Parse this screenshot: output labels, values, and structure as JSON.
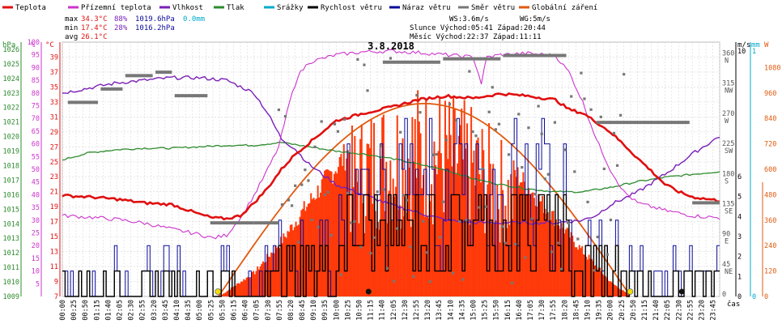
{
  "chart_data": {
    "type": "line",
    "title": "3.8.2018",
    "legend": [
      {
        "name": "Teplota",
        "color": "#e01010"
      },
      {
        "name": "Přízemní teplota",
        "color": "#cc33cc"
      },
      {
        "name": "Vlhkost",
        "color": "#7a1fb8"
      },
      {
        "name": "Tlak",
        "color": "#2e8b2e"
      },
      {
        "name": "Srážky",
        "color": "#00aacc"
      },
      {
        "name": "Rychlost větru",
        "color": "#000000"
      },
      {
        "name": "Náraz větru",
        "color": "#0a0a9a"
      },
      {
        "name": "Směr větru",
        "color": "#777777"
      },
      {
        "name": "Globální záření",
        "color": "#e05a10"
      }
    ],
    "stats": {
      "max": {
        "label": "max",
        "temp": "34.3°C",
        "hum": "88%",
        "press": "1019.6hPa",
        "rain": "0.0mm"
      },
      "min": {
        "label": "min",
        "temp": "17.4°C",
        "hum": "28%",
        "press": "1016.2hPa"
      },
      "avg": {
        "label": "avg",
        "temp": "26.1°C"
      }
    },
    "info": {
      "ws": "WS:3.6m/s",
      "wg": "WG:5m/s",
      "sun": "Slunce Východ:05:41  Západ:20:44",
      "moon": "Měsíc  Východ:22:37  Západ:11:11"
    },
    "axes": {
      "hpa_unit": "hPa",
      "pct_unit": "%",
      "temp_unit": "°C",
      "ms_unit": "m/s",
      "mm_unit": "mm",
      "w_unit": "W",
      "time_label": "čas",
      "hpa_ticks": [
        "1026",
        "1025",
        "1024",
        "1023",
        "1022",
        "1021",
        "1020",
        "1019",
        "1018",
        "1017",
        "1016",
        "1015",
        "1014",
        "1013",
        "1012",
        "1011",
        "1010",
        "1009"
      ],
      "pct_ticks": [
        "100",
        "95",
        "90",
        "85",
        "80",
        "75",
        "70",
        "65",
        "60",
        "55",
        "50",
        "45",
        "40",
        "35",
        "30",
        "25",
        "20",
        "15",
        "10",
        "5"
      ],
      "temp_ticks": [
        "39",
        "37",
        "35",
        "33",
        "31",
        "29",
        "27",
        "25",
        "23",
        "21",
        "19",
        "17",
        "15",
        "13",
        "11",
        "9",
        "7"
      ],
      "dir_ticks": [
        [
          "360",
          "N"
        ],
        [
          "315",
          "NW"
        ],
        [
          "270",
          "W"
        ],
        [
          "225",
          "SW"
        ],
        [
          "180",
          "S"
        ],
        [
          "135",
          "SE"
        ],
        [
          "90",
          "E"
        ],
        [
          "45",
          "NE"
        ],
        [
          "0",
          ""
        ]
      ],
      "ms_ticks": [
        "10",
        "9",
        "8",
        "7",
        "6",
        "5",
        "4",
        "3",
        "2",
        "1",
        "0"
      ],
      "mm_ticks": [
        "1",
        "0"
      ],
      "w_ticks": [
        "1080",
        "960",
        "840",
        "720",
        "600",
        "480",
        "360",
        "240",
        "120",
        "0"
      ],
      "time_ticks": [
        "00:00",
        "00:25",
        "00:50",
        "01:15",
        "01:40",
        "02:05",
        "02:30",
        "02:55",
        "03:20",
        "03:45",
        "04:10",
        "04:35",
        "05:00",
        "05:25",
        "05:50",
        "06:15",
        "06:40",
        "07:05",
        "07:30",
        "07:55",
        "08:20",
        "08:45",
        "09:10",
        "09:35",
        "10:00",
        "10:25",
        "10:50",
        "11:15",
        "11:40",
        "12:05",
        "12:30",
        "12:55",
        "13:20",
        "13:45",
        "14:10",
        "14:35",
        "15:00",
        "15:25",
        "15:50",
        "16:15",
        "16:40",
        "17:05",
        "17:30",
        "17:55",
        "18:20",
        "18:45",
        "19:10",
        "19:35",
        "20:00",
        "20:25",
        "20:50",
        "21:15",
        "21:40",
        "22:05",
        "22:30",
        "22:55",
        "23:20",
        "23:45"
      ]
    },
    "ylim_temp": [
      7,
      41
    ],
    "ylim_hum": [
      0,
      100
    ],
    "ylim_press": [
      1009,
      1026.5
    ],
    "ylim_rad": [
      0,
      1200
    ],
    "ylim_dir": [
      0,
      380
    ],
    "ylim_wind": [
      0,
      10
    ],
    "series": [
      {
        "name": "Teplota",
        "x_hours": [
          0,
          1,
          2,
          3,
          4,
          5,
          5.5,
          6,
          6.5,
          7,
          7.5,
          8,
          8.5,
          9,
          9.5,
          10,
          11,
          12,
          13,
          14,
          15,
          16,
          17,
          18,
          18.5,
          19,
          19.5,
          20,
          20.5,
          21,
          21.5,
          22,
          22.5,
          23,
          24
        ],
        "values": [
          20.5,
          20.3,
          20.0,
          19.5,
          19.3,
          18.0,
          17.5,
          17.4,
          17.8,
          19.5,
          21.5,
          24.0,
          26.0,
          27.5,
          29.0,
          30.5,
          31.5,
          32.3,
          33.3,
          33.8,
          33.5,
          34.1,
          33.8,
          33.3,
          32.0,
          31.5,
          30.3,
          29.0,
          27.3,
          25.5,
          23.8,
          22.0,
          21.0,
          20.3,
          19.8
        ]
      },
      {
        "name": "Přízemní teplota",
        "x_hours": [
          0,
          1,
          2,
          3,
          4,
          5,
          5.5,
          6,
          6.5,
          7,
          7.5,
          7.9,
          8.3,
          8.6,
          9,
          9.5,
          10,
          10.5,
          11,
          12,
          13,
          14,
          15,
          15.3,
          15.5,
          16,
          17,
          18,
          18.5,
          19,
          19.5,
          20,
          20.5,
          21,
          22,
          23,
          24
        ],
        "values": [
          17.8,
          17.6,
          17.3,
          16.8,
          16.0,
          15.3,
          14.8,
          15.2,
          17.5,
          20.5,
          24.0,
          27.0,
          33.0,
          36.5,
          38.3,
          38.8,
          39.3,
          39.5,
          39.7,
          39.8,
          39.6,
          39.3,
          39.0,
          35.5,
          39.0,
          39.3,
          39.5,
          39.2,
          37.0,
          33.0,
          28.0,
          24.0,
          21.0,
          19.5,
          18.5,
          17.8,
          17.5
        ]
      },
      {
        "name": "Vlhkost",
        "x_hours": [
          0,
          1,
          2,
          3,
          4,
          5,
          6,
          7,
          7.5,
          8,
          8.5,
          9,
          9.5,
          10,
          11,
          12,
          13,
          14,
          15,
          16,
          17,
          18,
          19,
          19.5,
          20,
          21,
          22,
          23,
          24
        ],
        "values": [
          80,
          82,
          84,
          85,
          86,
          86,
          85,
          80,
          72,
          62,
          58,
          52,
          48,
          44,
          40,
          36,
          33,
          30,
          29,
          29,
          29,
          29,
          30,
          32,
          36,
          41,
          48,
          56,
          63
        ]
      },
      {
        "name": "Tlak",
        "x_hours": [
          0,
          1,
          2,
          3,
          4,
          5,
          6,
          7,
          8,
          9,
          10,
          11,
          12,
          13,
          14,
          15,
          16,
          17,
          18,
          19,
          20,
          21,
          22,
          23,
          24
        ],
        "values": [
          1018.4,
          1018.9,
          1019.1,
          1019.2,
          1019.2,
          1019.3,
          1019.4,
          1019.4,
          1019.6,
          1019.3,
          1019.0,
          1018.8,
          1018.5,
          1018.1,
          1017.7,
          1017.1,
          1016.7,
          1016.4,
          1016.2,
          1016.2,
          1016.5,
          1016.9,
          1017.2,
          1017.4,
          1017.6
        ]
      },
      {
        "name": "Globální záření",
        "x_hours": [
          5.7,
          7,
          8,
          9,
          10,
          11,
          12,
          13,
          14,
          15,
          16,
          17,
          18,
          19,
          20,
          20.75
        ],
        "values": [
          0,
          120,
          280,
          470,
          650,
          810,
          900,
          930,
          900,
          820,
          690,
          540,
          380,
          220,
          70,
          0
        ]
      }
    ]
  }
}
